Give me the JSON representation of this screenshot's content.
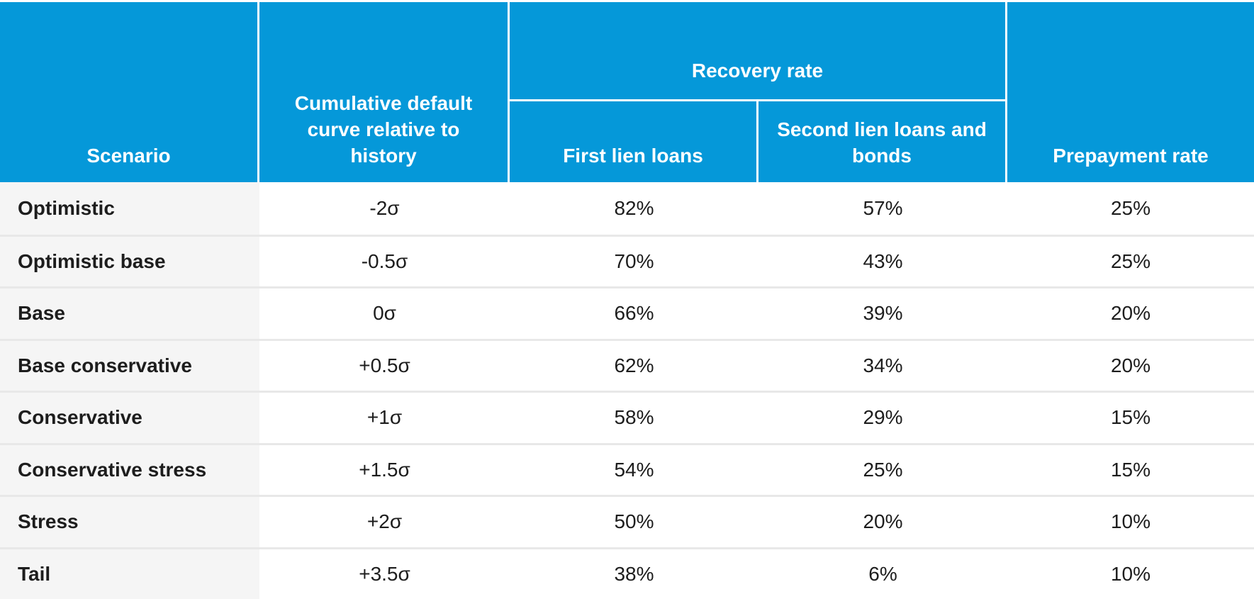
{
  "chart_data": {
    "type": "table",
    "header": {
      "scenario": "Scenario",
      "cumulative_default": "Cumulative default curve relative to history",
      "recovery_group": "Recovery rate",
      "first_lien": "First lien loans",
      "second_lien": "Second lien loans and bonds",
      "prepayment": "Prepayment rate"
    },
    "rows": [
      {
        "scenario": "Optimistic",
        "sigma": "-2σ",
        "first_lien": "82%",
        "second_lien": "57%",
        "prepayment": "25%"
      },
      {
        "scenario": "Optimistic base",
        "sigma": "-0.5σ",
        "first_lien": "70%",
        "second_lien": "43%",
        "prepayment": "25%"
      },
      {
        "scenario": "Base",
        "sigma": "0σ",
        "first_lien": "66%",
        "second_lien": "39%",
        "prepayment": "20%"
      },
      {
        "scenario": "Base conservative",
        "sigma": "+0.5σ",
        "first_lien": "62%",
        "second_lien": "34%",
        "prepayment": "20%"
      },
      {
        "scenario": "Conservative",
        "sigma": "+1σ",
        "first_lien": "58%",
        "second_lien": "29%",
        "prepayment": "15%"
      },
      {
        "scenario": "Conservative stress",
        "sigma": "+1.5σ",
        "first_lien": "54%",
        "second_lien": "25%",
        "prepayment": "15%"
      },
      {
        "scenario": "Stress",
        "sigma": "+2σ",
        "first_lien": "50%",
        "second_lien": "20%",
        "prepayment": "10%"
      },
      {
        "scenario": "Tail",
        "sigma": "+3.5σ",
        "first_lien": "38%",
        "second_lien": "6%",
        "prepayment": "10%"
      }
    ]
  },
  "colors": {
    "header_blue": "#0598d9",
    "row_stripe": "#f5f5f5",
    "separator": "#e8e8e8",
    "text": "#1d1d1d",
    "header_text": "#ffffff"
  }
}
